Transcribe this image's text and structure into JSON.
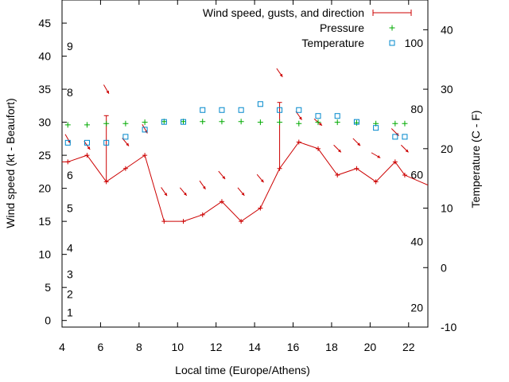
{
  "chart_data": {
    "type": "line",
    "xlabel": "Local time (Europe/Athens)",
    "ylabel_left": "Wind speed (kt - Beaufort)",
    "ylabel_right": "Temperature (C - F)",
    "xlim": [
      4,
      23
    ],
    "ylim_left": [
      -1,
      48.5
    ],
    "ylim_right": [
      -10,
      45
    ],
    "x_ticks": [
      4,
      6,
      8,
      10,
      12,
      14,
      16,
      18,
      20,
      22
    ],
    "y_ticks_left": [
      0,
      5,
      10,
      15,
      20,
      25,
      30,
      35,
      40,
      45
    ],
    "y_ticks_right": [
      -10,
      0,
      10,
      20,
      30,
      40
    ],
    "beaufort_labels": [
      {
        "label": "1",
        "kt": 1.2
      },
      {
        "label": "2",
        "kt": 4
      },
      {
        "label": "3",
        "kt": 7
      },
      {
        "label": "4",
        "kt": 11
      },
      {
        "label": "5",
        "kt": 17
      },
      {
        "label": "6",
        "kt": 22
      },
      {
        "label": "8",
        "kt": 34.5
      },
      {
        "label": "9",
        "kt": 41.5
      }
    ],
    "fahrenheit_labels": [
      {
        "label": "20",
        "celsius": -6.7
      },
      {
        "label": "40",
        "celsius": 4.4
      },
      {
        "label": "60",
        "celsius": 15.6
      },
      {
        "label": "80",
        "celsius": 26.7
      },
      {
        "label": "100",
        "celsius": 37.8
      }
    ],
    "legend": {
      "position": "top-right",
      "entries": [
        "Wind speed, gusts, and direction",
        "Pressure",
        "Temperature"
      ]
    },
    "colors": {
      "wind": "#cc0000",
      "pressure": "#00aa00",
      "temperature": "#0088cc"
    },
    "series": [
      {
        "name": "Wind speed, gusts, and direction",
        "axis": "left",
        "x": [
          3.3,
          4.3,
          5.3,
          6.3,
          7.3,
          8.3,
          9.3,
          10.3,
          11.3,
          12.3,
          13.3,
          14.3,
          15.3,
          16.3,
          17.3,
          18.3,
          19.3,
          20.3,
          21.3,
          21.8,
          23
        ],
        "y": [
          24,
          24,
          25,
          21,
          23,
          25,
          15,
          15,
          16,
          18,
          15,
          17,
          23,
          27,
          26,
          22,
          23,
          21,
          24,
          22,
          20.5
        ],
        "gusts": [
          {
            "x": 6.3,
            "y": 31
          },
          {
            "x": 15.3,
            "y": 33
          }
        ],
        "direction_arrows": [
          {
            "x": 4.3,
            "y": 27.5,
            "dir_deg": 150
          },
          {
            "x": 5.3,
            "y": 26.5,
            "dir_deg": 145
          },
          {
            "x": 6.3,
            "y": 35,
            "dir_deg": 150
          },
          {
            "x": 7.3,
            "y": 27,
            "dir_deg": 140
          },
          {
            "x": 8.3,
            "y": 29,
            "dir_deg": 150
          },
          {
            "x": 9.3,
            "y": 19.5,
            "dir_deg": 145
          },
          {
            "x": 10.3,
            "y": 19.5,
            "dir_deg": 140
          },
          {
            "x": 11.3,
            "y": 20.5,
            "dir_deg": 145
          },
          {
            "x": 12.3,
            "y": 22,
            "dir_deg": 140
          },
          {
            "x": 13.3,
            "y": 19.5,
            "dir_deg": 140
          },
          {
            "x": 14.3,
            "y": 21.5,
            "dir_deg": 140
          },
          {
            "x": 15.3,
            "y": 37.5,
            "dir_deg": 145
          },
          {
            "x": 16.3,
            "y": 31,
            "dir_deg": 145
          },
          {
            "x": 17.3,
            "y": 30,
            "dir_deg": 130
          },
          {
            "x": 18.3,
            "y": 26,
            "dir_deg": 135
          },
          {
            "x": 19.3,
            "y": 27,
            "dir_deg": 135
          },
          {
            "x": 20.3,
            "y": 25,
            "dir_deg": 120
          },
          {
            "x": 21.3,
            "y": 28.5,
            "dir_deg": 135
          },
          {
            "x": 21.8,
            "y": 26,
            "dir_deg": 135
          }
        ]
      },
      {
        "name": "Pressure",
        "axis": "left",
        "x": [
          4.3,
          5.3,
          6.3,
          7.3,
          8.3,
          9.3,
          10.3,
          11.3,
          12.3,
          13.3,
          14.3,
          15.3,
          16.3,
          17.3,
          18.3,
          19.3,
          20.3,
          21.3,
          21.8
        ],
        "y": [
          29.6,
          29.6,
          29.8,
          29.8,
          30,
          30.1,
          30.1,
          30.1,
          30.1,
          30.1,
          30,
          30,
          29.8,
          30,
          30,
          29.9,
          29.8,
          29.8,
          29.8
        ]
      },
      {
        "name": "Temperature",
        "axis": "right",
        "x": [
          4.3,
          5.3,
          6.3,
          7.3,
          8.3,
          9.3,
          10.3,
          11.3,
          12.3,
          13.3,
          14.3,
          15.3,
          16.3,
          17.3,
          18.3,
          19.3,
          20.3,
          21.3,
          21.8
        ],
        "y": [
          21,
          21,
          21,
          22,
          23.2,
          24.5,
          24.5,
          26.5,
          26.5,
          26.5,
          27.5,
          26.5,
          26.5,
          25.5,
          25.5,
          24.5,
          23.5,
          22,
          22
        ]
      }
    ]
  }
}
